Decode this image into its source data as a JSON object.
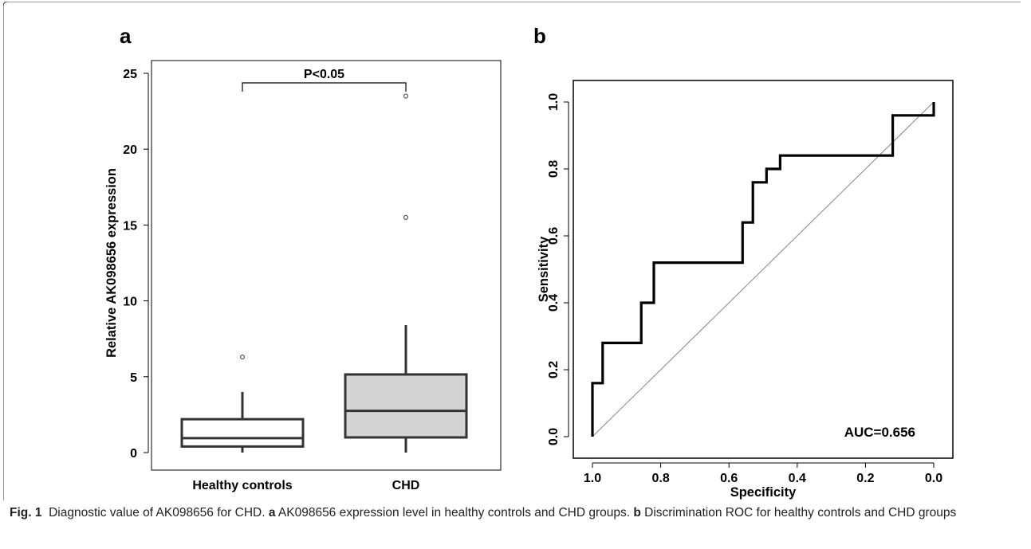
{
  "panel_a": {
    "letter": "a",
    "significance": "P<0.05"
  },
  "panel_b": {
    "letter": "b",
    "auc_label": "AUC=0.656"
  },
  "caption": {
    "fig_label": "Fig. 1",
    "text1": "Diagnostic value of AK098656 for CHD. ",
    "a": "a",
    "text2": " AK098656 expression level in healthy controls and CHD groups. ",
    "b": "b",
    "text3": " Discrimination ROC for healthy controls and CHD groups"
  },
  "chart_data": [
    {
      "type": "box",
      "title": "",
      "xlabel": "",
      "ylabel": "Relative AK098656 expression",
      "ylim": [
        0,
        25
      ],
      "yticks": [
        0,
        5,
        10,
        15,
        20,
        25
      ],
      "categories": [
        "Healthy controls",
        "CHD"
      ],
      "boxes": [
        {
          "name": "Healthy controls",
          "min": 0,
          "q1": 0.4,
          "median": 0.95,
          "q3": 2.2,
          "max": 4.0,
          "outliers": [
            6.3
          ],
          "fill": "#ffffff"
        },
        {
          "name": "CHD",
          "min": 0,
          "q1": 1.0,
          "median": 2.75,
          "q3": 5.15,
          "max": 8.4,
          "outliers": [
            15.5,
            23.5
          ],
          "fill": "#d3d3d3"
        }
      ],
      "annotation": "P<0.05"
    },
    {
      "type": "line",
      "title": "",
      "xlabel": "Specificity",
      "ylabel": "Sensitivity",
      "xlim": [
        1.0,
        0.0
      ],
      "ylim": [
        0.0,
        1.0
      ],
      "xticks": [
        "1.0",
        "0.8",
        "0.6",
        "0.4",
        "0.2",
        "0.0"
      ],
      "yticks": [
        "0.0",
        "0.2",
        "0.4",
        "0.6",
        "0.8",
        "1.0"
      ],
      "series": [
        {
          "x": [
            1.0,
            1.0,
            0.97,
            0.97,
            0.857,
            0.857,
            0.82,
            0.82,
            0.56,
            0.56,
            0.53,
            0.53,
            0.49,
            0.49,
            0.45,
            0.45,
            0.12,
            0.12,
            0.0,
            0.0
          ],
          "y": [
            0.0,
            0.16,
            0.16,
            0.28,
            0.28,
            0.4,
            0.4,
            0.52,
            0.52,
            0.64,
            0.64,
            0.76,
            0.76,
            0.8,
            0.8,
            0.84,
            0.84,
            0.96,
            0.96,
            1.0
          ]
        }
      ],
      "reference_line": "diagonal",
      "auc": "AUC=0.656"
    }
  ]
}
